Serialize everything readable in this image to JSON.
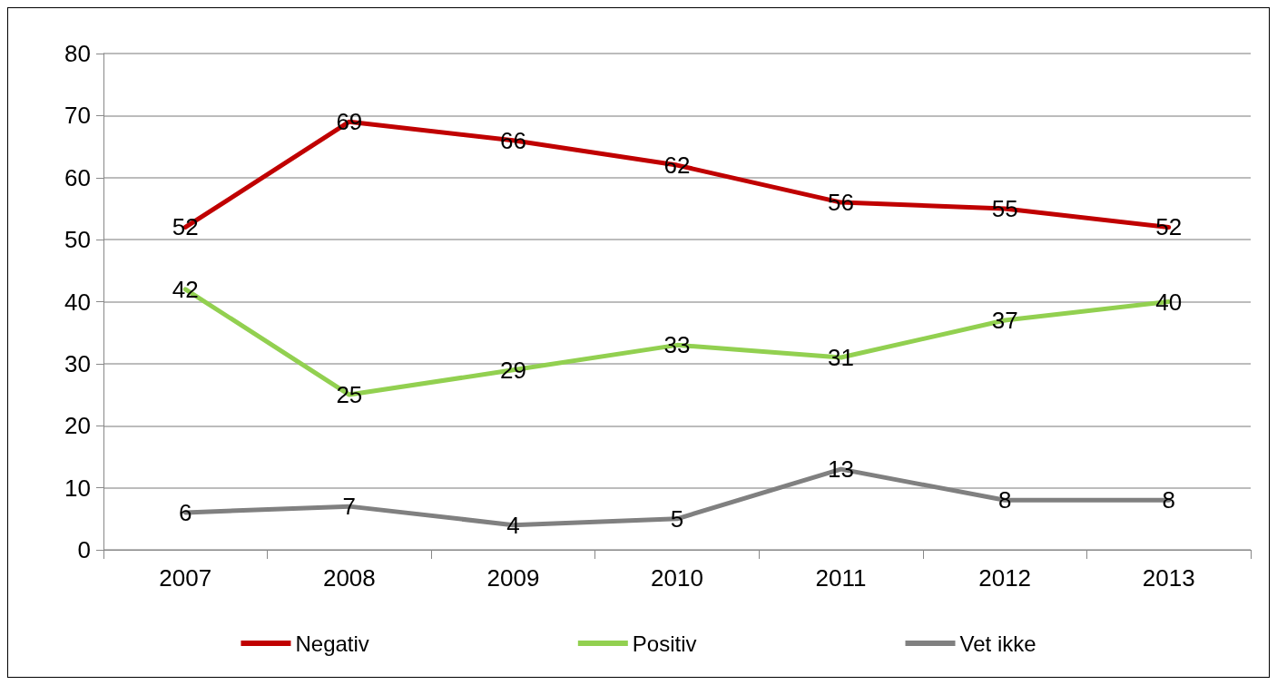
{
  "chart_data": {
    "type": "line",
    "categories": [
      "2007",
      "2008",
      "2009",
      "2010",
      "2011",
      "2012",
      "2013"
    ],
    "series": [
      {
        "name": "Negativ",
        "color": "#c00000",
        "values": [
          52,
          69,
          66,
          62,
          56,
          55,
          52
        ]
      },
      {
        "name": "Positiv",
        "color": "#92d050",
        "values": [
          42,
          25,
          29,
          33,
          31,
          37,
          40
        ]
      },
      {
        "name": "Vet ikke",
        "color": "#808080",
        "values": [
          6,
          7,
          4,
          5,
          13,
          8,
          8
        ]
      }
    ],
    "ylim": [
      0,
      80
    ],
    "yticks": [
      0,
      10,
      20,
      30,
      40,
      50,
      60,
      70,
      80
    ],
    "grid": "y",
    "legend": "bottom",
    "data_labels": true,
    "marker": "none",
    "line_style": "solid"
  }
}
